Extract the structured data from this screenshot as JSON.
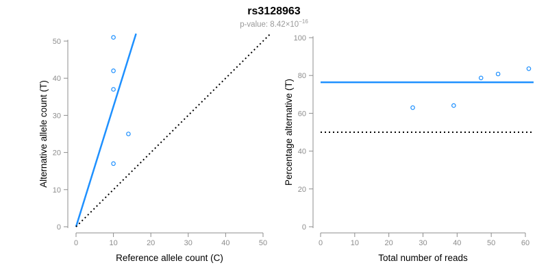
{
  "header": {
    "title": "rs3128963",
    "subtitle_text": "p-value: 8.42×10",
    "subtitle_exponent": "−16"
  },
  "colors": {
    "accent_blue": "#1E90FF",
    "axis_gray": "#8c8c8c",
    "reference_black": "#000000",
    "title_black": "#000000",
    "subtitle_gray": "#999999"
  },
  "chart_data": [
    {
      "type": "scatter",
      "panel": "left",
      "xlabel": "Reference allele count (C)",
      "ylabel": "Alternative allele count (T)",
      "xlim": [
        0,
        50
      ],
      "ylim": [
        0,
        50
      ],
      "xticks": [
        0,
        10,
        20,
        30,
        40,
        50
      ],
      "yticks": [
        0,
        10,
        20,
        30,
        40,
        50
      ],
      "grid": false,
      "points": [
        {
          "x": 10,
          "y": 51
        },
        {
          "x": 10,
          "y": 42
        },
        {
          "x": 10,
          "y": 37
        },
        {
          "x": 14,
          "y": 25
        },
        {
          "x": 10,
          "y": 17
        }
      ],
      "lines": [
        {
          "name": "fit-line",
          "kind": "ab",
          "intercept": 0,
          "slope": 3.24,
          "style": "solid",
          "color": "#1E90FF"
        },
        {
          "name": "identity-line",
          "kind": "ab",
          "intercept": 0,
          "slope": 1,
          "style": "dotted",
          "color": "#000000"
        }
      ]
    },
    {
      "type": "scatter",
      "panel": "right",
      "xlabel": "Total number of reads",
      "ylabel": "Percentage alternative (T)",
      "xlim": [
        0,
        60
      ],
      "ylim": [
        0,
        100
      ],
      "xticks": [
        0,
        10,
        20,
        30,
        40,
        50,
        60
      ],
      "yticks": [
        0,
        20,
        40,
        60,
        80,
        100
      ],
      "grid": false,
      "points": [
        {
          "x": 27,
          "y": 63.0
        },
        {
          "x": 39,
          "y": 64.1
        },
        {
          "x": 47,
          "y": 78.7
        },
        {
          "x": 52,
          "y": 80.8
        },
        {
          "x": 61,
          "y": 83.6
        }
      ],
      "lines": [
        {
          "name": "fit-line",
          "kind": "h",
          "y": 76.4,
          "style": "solid",
          "color": "#1E90FF"
        },
        {
          "name": "reference-line",
          "kind": "h",
          "y": 50,
          "style": "dotted",
          "color": "#000000"
        }
      ]
    }
  ]
}
